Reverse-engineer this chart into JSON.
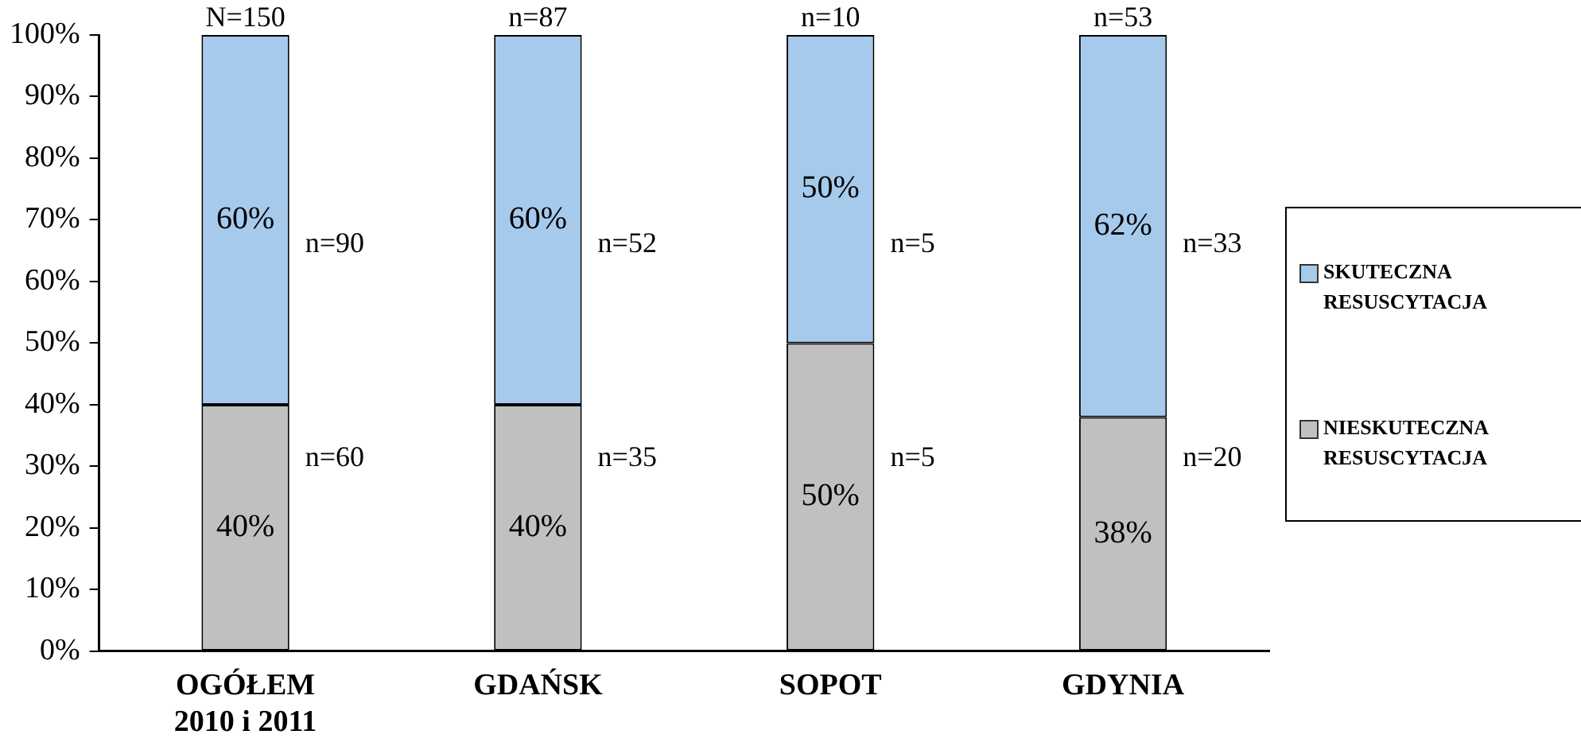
{
  "chart_data": {
    "type": "bar",
    "stacked": true,
    "categories": [
      "OGÓŁEM 2010 i 2011",
      "GDAŃSK",
      "SOPOT",
      "GDYNIA"
    ],
    "series": [
      {
        "name": "NIESKUTECZNA RESUSCYTACJA",
        "color": "#c0c0c0",
        "values": [
          40,
          40,
          50,
          38
        ],
        "value_labels": [
          "40%",
          "40%",
          "50%",
          "38%"
        ]
      },
      {
        "name": "SKUTECZNA RESUSCYTACJA",
        "color": "#a6caec",
        "values": [
          60,
          60,
          50,
          62
        ],
        "value_labels": [
          "60%",
          "60%",
          "50%",
          "62%"
        ]
      }
    ],
    "ylim": [
      0,
      100
    ],
    "yticks": [
      {
        "value": 0,
        "label": "0%"
      },
      {
        "value": 10,
        "label": "10%"
      },
      {
        "value": 20,
        "label": "20%"
      },
      {
        "value": 30,
        "label": "30%"
      },
      {
        "value": 40,
        "label": "40%"
      },
      {
        "value": 50,
        "label": "50%"
      },
      {
        "value": 60,
        "label": "60%"
      },
      {
        "value": 70,
        "label": "70%"
      },
      {
        "value": 80,
        "label": "80%"
      },
      {
        "value": 90,
        "label": "90%"
      },
      {
        "value": 100,
        "label": "100%"
      }
    ],
    "annotations": [
      "N=150",
      "n=90",
      "n=60",
      "n=87",
      "n=52",
      "n=35",
      "n=10",
      "n=5",
      "n=5",
      "n=53",
      "n=33",
      "n=20"
    ],
    "grid": false,
    "legend": "right"
  }
}
